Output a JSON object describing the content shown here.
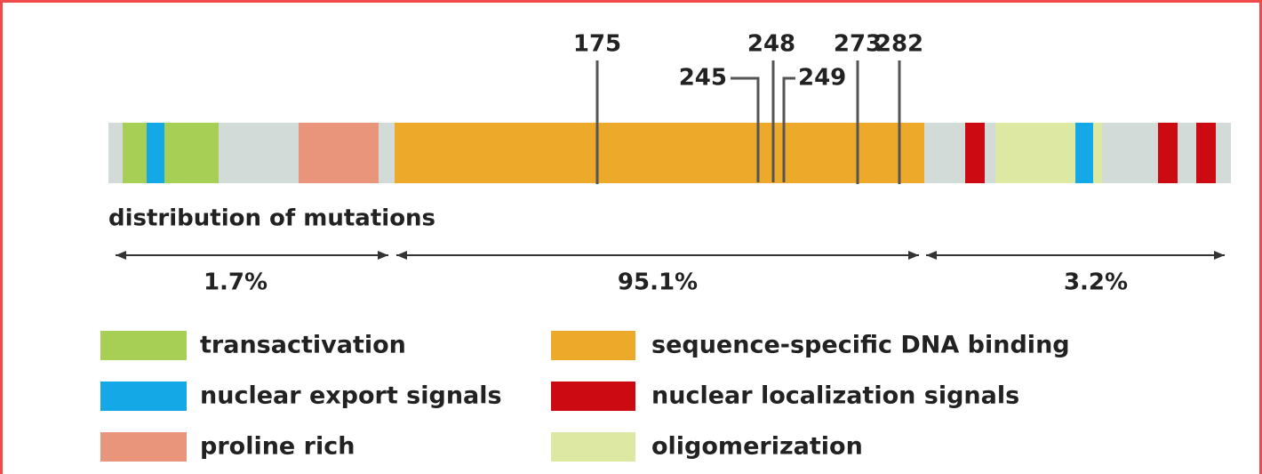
{
  "hotspots": [
    "175",
    "245",
    "248",
    "249",
    "273",
    "282"
  ],
  "distribution": {
    "title": "distribution of mutations",
    "regions": [
      "1.7%",
      "95.1%",
      "3.2%"
    ]
  },
  "legend": [
    {
      "label": "transactivation",
      "color": "#a8cf55"
    },
    {
      "label": "nuclear export signals",
      "color": "#14a9e6"
    },
    {
      "label": "proline rich",
      "color": "#e8957c"
    },
    {
      "label": "sequence-specific DNA binding",
      "color": "#eca92a"
    },
    {
      "label": "nuclear localization signals",
      "color": "#cc0a12"
    },
    {
      "label": "oligomerization",
      "color": "#dde9a2"
    }
  ]
}
